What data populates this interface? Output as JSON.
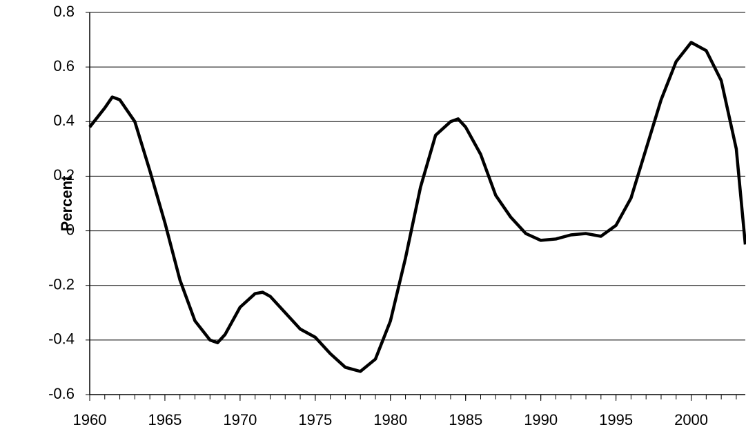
{
  "chart_data": {
    "type": "line",
    "y_label": "Percent",
    "x": [
      1960,
      1961,
      1961.5,
      1962,
      1963,
      1964,
      1965,
      1966,
      1967,
      1968,
      1968.5,
      1969,
      1970,
      1971,
      1971.5,
      1972,
      1973,
      1974,
      1975,
      1976,
      1977,
      1978,
      1979,
      1980,
      1981,
      1982,
      1983,
      1984,
      1984.5,
      1985,
      1986,
      1987,
      1988,
      1989,
      1990,
      1991,
      1992,
      1993,
      1994,
      1995,
      1996,
      1997,
      1998,
      1999,
      2000,
      2001,
      2002,
      2003,
      2003.6
    ],
    "values": [
      0.38,
      0.45,
      0.49,
      0.48,
      0.4,
      0.22,
      0.03,
      -0.18,
      -0.33,
      -0.4,
      -0.41,
      -0.38,
      -0.28,
      -0.23,
      -0.225,
      -0.24,
      -0.3,
      -0.36,
      -0.39,
      -0.45,
      -0.5,
      -0.515,
      -0.47,
      -0.33,
      -0.1,
      0.16,
      0.35,
      0.4,
      0.41,
      0.38,
      0.28,
      0.13,
      0.05,
      -0.01,
      -0.035,
      -0.03,
      -0.015,
      -0.01,
      -0.02,
      0.02,
      0.12,
      0.3,
      0.48,
      0.62,
      0.69,
      0.66,
      0.55,
      0.3,
      -0.05
    ],
    "color": "#000000",
    "xlim": [
      1960,
      2003.6
    ],
    "xticks": [
      1960,
      1965,
      1970,
      1975,
      1980,
      1985,
      1990,
      1995,
      2000
    ],
    "ylim": [
      -0.6,
      0.8
    ],
    "yticks": [
      -0.6,
      -0.4,
      -0.2,
      0,
      0.2,
      0.4,
      0.6,
      0.8
    ],
    "grid": true
  }
}
